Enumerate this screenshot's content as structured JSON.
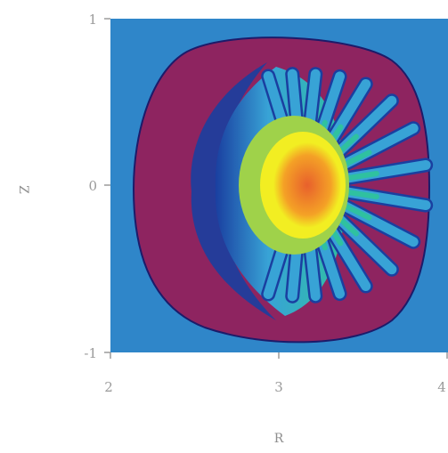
{
  "chart_data": {
    "type": "heatmap",
    "title": "",
    "xlabel": "R",
    "ylabel": "Z",
    "xlim": [
      2,
      4
    ],
    "ylim": [
      -1,
      1
    ],
    "x_ticks": [
      "2",
      "3",
      "4"
    ],
    "y_ticks": [
      "1",
      "0",
      "-1"
    ],
    "grid": false,
    "legend": "none",
    "colormap": [
      "#2f86c9",
      "#1a3fa0",
      "#38a3d6",
      "#2fc1a0",
      "#9fd24a",
      "#f2ee22",
      "#f4a126",
      "#e8602c",
      "#8e2460"
    ],
    "colors": {
      "background": "#2f86c9",
      "vacuum_region": "#8e2460",
      "boundary": "#1c1b6a",
      "core": "#e8602c",
      "core_edge": "#f2ee22"
    },
    "features": {
      "separatrix_center": [
        3.0,
        0.0
      ],
      "core_center": [
        3.15,
        0.0
      ],
      "n_fingers": 16
    }
  }
}
